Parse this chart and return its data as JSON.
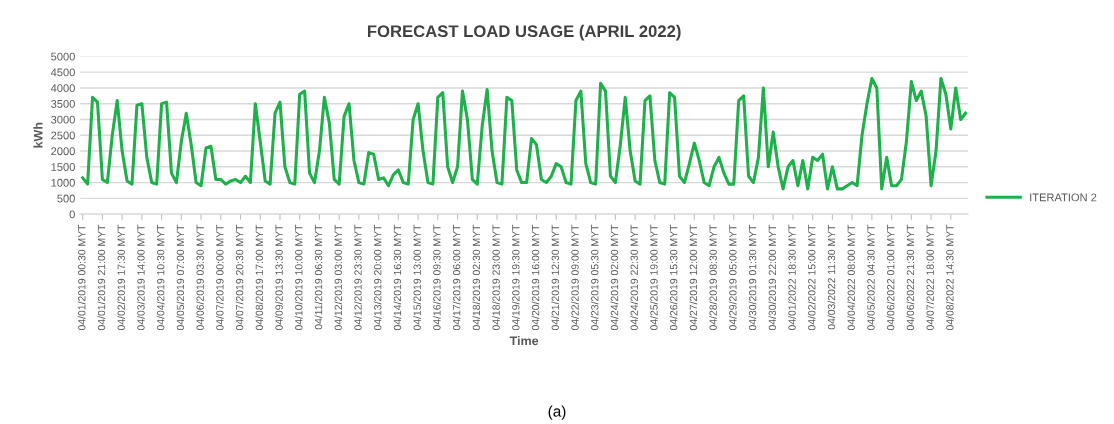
{
  "chart_data": {
    "type": "line",
    "title": "FORECAST LOAD USAGE (APRIL 2022)",
    "xlabel": "Time",
    "ylabel": "kWh",
    "annotations": [
      "(a)"
    ],
    "categories": [
      "04/01/2019 00:30 MYT",
      null,
      null,
      null,
      "04/01/2019 21:00 MYT",
      null,
      null,
      null,
      "04/02/2019 17:30 MYT",
      null,
      null,
      null,
      "04/03/2019 14:00 MYT",
      null,
      null,
      null,
      "04/04/2019 10:30 MYT",
      null,
      null,
      null,
      "04/05/2019 07:00 MYT",
      null,
      null,
      null,
      "04/06/2019 03:30 MYT",
      null,
      null,
      null,
      "04/07/2019 00:00 MYT",
      null,
      null,
      null,
      "04/07/2019 20:30 MYT",
      null,
      null,
      null,
      "04/08/2019 17:00 MYT",
      null,
      null,
      null,
      "04/09/2019 13:30 MYT",
      null,
      null,
      null,
      "04/10/2019 10:00 MYT",
      null,
      null,
      null,
      "04/11/2019 06:30 MYT",
      null,
      null,
      null,
      "04/12/2019 03:00 MYT",
      null,
      null,
      null,
      "04/12/2019 23:30 MYT",
      null,
      null,
      null,
      "04/13/2019 20:00 MYT",
      null,
      null,
      null,
      "04/14/2019 16:30 MYT",
      null,
      null,
      null,
      "04/15/2019 13:00 MYT",
      null,
      null,
      null,
      "04/16/2019 09:30 MYT",
      null,
      null,
      null,
      "04/17/2019 06:00 MYT",
      null,
      null,
      null,
      "04/18/2019 02:30 MYT",
      null,
      null,
      null,
      "04/18/2019 23:00 MYT",
      null,
      null,
      null,
      "04/19/2019 19:30 MYT",
      null,
      null,
      null,
      "04/20/2019 16:00 MYT",
      null,
      null,
      null,
      "04/21/2019 12:30 MYT",
      null,
      null,
      null,
      "04/22/2019 09:00 MYT",
      null,
      null,
      null,
      "04/23/2019 05:30 MYT",
      null,
      null,
      null,
      "04/24/2019 02:00 MYT",
      null,
      null,
      null,
      "04/24/2019 22:30 MYT",
      null,
      null,
      null,
      "04/25/2019 19:00 MYT",
      null,
      null,
      null,
      "04/26/2019 15:30 MYT",
      null,
      null,
      null,
      "04/27/2019 12:00 MYT",
      null,
      null,
      null,
      "04/28/2019 08:30 MYT",
      null,
      null,
      null,
      "04/29/2019 05:00 MYT",
      null,
      null,
      null,
      "04/30/2019 01:30 MYT",
      null,
      null,
      null,
      "04/30/2019 22:00 MYT",
      null,
      null,
      null,
      "04/01/2022 18:30 MYT",
      null,
      null,
      null,
      "04/02/2022 15:00 MYT",
      null,
      null,
      null,
      "04/03/2022 11:30 MYT",
      null,
      null,
      null,
      "04/04/2022 08:00 MYT",
      null,
      null,
      null,
      "04/05/2022 04:30 MYT",
      null,
      null,
      null,
      "04/06/2022 01:00 MYT",
      null,
      null,
      null,
      "04/06/2022 21:30 MYT",
      null,
      null,
      null,
      "04/07/2022 18:00 MYT",
      null,
      null,
      null,
      "04/08/2022 14:30 MYT",
      null,
      null,
      null
    ],
    "series": [
      {
        "name": "ITERATION 2",
        "color": "#1db04b",
        "values": [
          1150,
          950,
          3700,
          3550,
          1100,
          1000,
          2500,
          3600,
          2000,
          1050,
          950,
          3450,
          3500,
          1800,
          1000,
          950,
          3500,
          3550,
          1300,
          1000,
          2300,
          3200,
          2200,
          1000,
          900,
          2100,
          2150,
          1100,
          1100,
          950,
          1050,
          1100,
          1000,
          1200,
          1000,
          3500,
          2300,
          1050,
          950,
          3200,
          3550,
          1500,
          1000,
          950,
          3800,
          3900,
          1300,
          1000,
          2000,
          3700,
          2900,
          1100,
          950,
          3100,
          3500,
          1700,
          1000,
          950,
          1950,
          1900,
          1100,
          1150,
          900,
          1250,
          1400,
          1000,
          950,
          3000,
          3500,
          2000,
          1000,
          950,
          3700,
          3850,
          1500,
          1000,
          1500,
          3900,
          3000,
          1100,
          950,
          2800,
          3950,
          2000,
          1000,
          950,
          3700,
          3600,
          1400,
          1000,
          1000,
          2400,
          2200,
          1100,
          1000,
          1200,
          1600,
          1500,
          1000,
          950,
          3600,
          3900,
          1600,
          1000,
          950,
          4150,
          3900,
          1200,
          1000,
          2200,
          3700,
          2000,
          1050,
          950,
          3600,
          3750,
          1700,
          1000,
          950,
          3850,
          3700,
          1200,
          1000,
          1600,
          2250,
          1700,
          1000,
          900,
          1500,
          1800,
          1300,
          950,
          950,
          3600,
          3750,
          1200,
          1000,
          1800,
          4000,
          1500,
          2600,
          1500,
          800,
          1500,
          1700,
          900,
          1700,
          800,
          1800,
          1700,
          1900,
          800,
          1500,
          800,
          800,
          900,
          1000,
          900,
          2500,
          3500,
          4300,
          4000,
          800,
          1800,
          900,
          900,
          1100,
          2300,
          4200,
          3600,
          3900,
          3100,
          900,
          2000,
          4300,
          3800,
          2700,
          4000,
          3000,
          3200
        ]
      }
    ],
    "ylim": [
      0,
      5000
    ],
    "yticks": [
      0,
      500,
      1000,
      1500,
      2000,
      2500,
      3000,
      3500,
      4000,
      4500,
      5000
    ],
    "grid": "y",
    "legend": "right",
    "marker": "none",
    "line_style": "solid"
  }
}
